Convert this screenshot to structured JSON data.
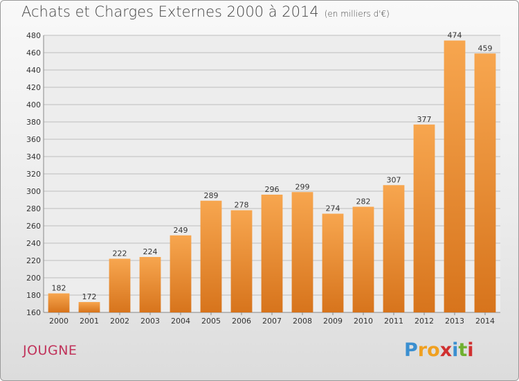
{
  "title": "Achats et Charges Externes 2000 à 2014",
  "subtitle": "(en milliers d'€)",
  "commune": "JOUGNE",
  "logo": {
    "letters": [
      "P",
      "r",
      "o",
      "x",
      "i",
      "t",
      "i"
    ],
    "colors": [
      "#3a8fd0",
      "#f0a020",
      "#f0a020",
      "#d03030",
      "#3a8fd0",
      "#70b030",
      "#d03030"
    ]
  },
  "colors": {
    "bar_light": "#f7a64f",
    "bar_dark": "#d7741c",
    "grid": "#bdbdbd"
  },
  "chart_data": {
    "type": "bar",
    "categories": [
      "2000",
      "2001",
      "2002",
      "2003",
      "2004",
      "2005",
      "2006",
      "2007",
      "2008",
      "2009",
      "2010",
      "2011",
      "2012",
      "2013",
      "2014"
    ],
    "values": [
      182,
      172,
      222,
      224,
      249,
      289,
      278,
      296,
      299,
      274,
      282,
      307,
      377,
      474,
      459
    ],
    "ylim": [
      160,
      480
    ],
    "yticks": [
      160,
      180,
      200,
      220,
      240,
      260,
      280,
      300,
      320,
      340,
      360,
      380,
      400,
      420,
      440,
      460,
      480
    ],
    "grid": "horizontal"
  }
}
